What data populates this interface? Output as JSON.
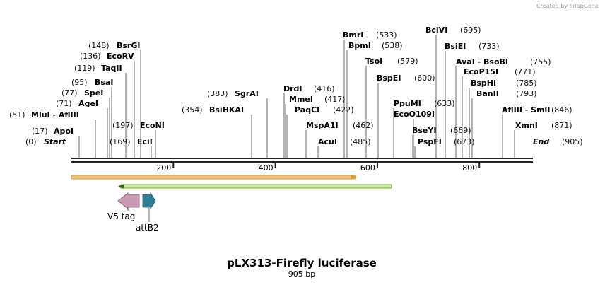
{
  "credit": "Created by SnapGene",
  "title": "pLX313-Firefly luciferase",
  "length_label": "905 bp",
  "length": 905,
  "ticks": [
    {
      "label": "200"
    },
    {
      "label": "400"
    },
    {
      "label": "600"
    },
    {
      "label": "800"
    }
  ],
  "sites": [
    {
      "pos": "(0)",
      "name": "Start",
      "italic": true
    },
    {
      "pos": "(17)",
      "name": "ApoI"
    },
    {
      "pos": "(51)",
      "name": "MluI",
      "pair": "AflIII"
    },
    {
      "pos": "(71)",
      "name": "AgeI"
    },
    {
      "pos": "(77)",
      "name": "SpeI"
    },
    {
      "pos": "(95)",
      "name": "BsaI"
    },
    {
      "pos": "(119)",
      "name": "TaqII"
    },
    {
      "pos": "(136)",
      "name": "EcoRV"
    },
    {
      "pos": "(148)",
      "name": "BsrGI"
    },
    {
      "pos": "(169)",
      "name": "EciI"
    },
    {
      "pos": "(197)",
      "name": "EcoNI"
    },
    {
      "pos": "(354)",
      "name": "BsiHKAI"
    },
    {
      "pos": "(383)",
      "name": "SgrAI"
    },
    {
      "pos": "(416)",
      "name": "DrdI"
    },
    {
      "pos": "(417)",
      "name": "MmeI"
    },
    {
      "pos": "(422)",
      "name": "PaqCI"
    },
    {
      "pos": "(462)",
      "name": "MspA1I"
    },
    {
      "pos": "(485)",
      "name": "AcuI"
    },
    {
      "pos": "(533)",
      "name": "BmrI"
    },
    {
      "pos": "(538)",
      "name": "BpmI"
    },
    {
      "pos": "(579)",
      "name": "TsoI"
    },
    {
      "pos": "(600)",
      "name": "BspEI"
    },
    {
      "pos": "(633)",
      "name": "PpuMI"
    },
    {
      "pos": "",
      "name": "EcoO109I"
    },
    {
      "pos": "(669)",
      "name": "BseYI"
    },
    {
      "pos": "(673)",
      "name": "PspFI"
    },
    {
      "pos": "(695)",
      "name": "BciVI"
    },
    {
      "pos": "(733)",
      "name": "BsiEI"
    },
    {
      "pos": "(755)",
      "name": "AvaI",
      "pair": "BsoBI"
    },
    {
      "pos": "(771)",
      "name": "EcoP15I"
    },
    {
      "pos": "(785)",
      "name": "BspHI"
    },
    {
      "pos": "(793)",
      "name": "BanII"
    },
    {
      "pos": "(846)",
      "name": "AflIII",
      "pair": "SmlI"
    },
    {
      "pos": "(871)",
      "name": "XmnI"
    },
    {
      "pos": "(905)",
      "name": "End",
      "italic": true
    }
  ],
  "features": [
    {
      "name": "V5 tag"
    },
    {
      "name": "attB2"
    }
  ],
  "colors": {
    "backbone": "#222222",
    "orange_fill": "#f6c27a",
    "orange_edge": "#d79a3a",
    "green_fill": "#cfe9a6",
    "green_edge": "#6fae2c",
    "v5_fill": "#c99ab3",
    "attb2_fill": "#2f7e95",
    "leader": "#444444"
  }
}
